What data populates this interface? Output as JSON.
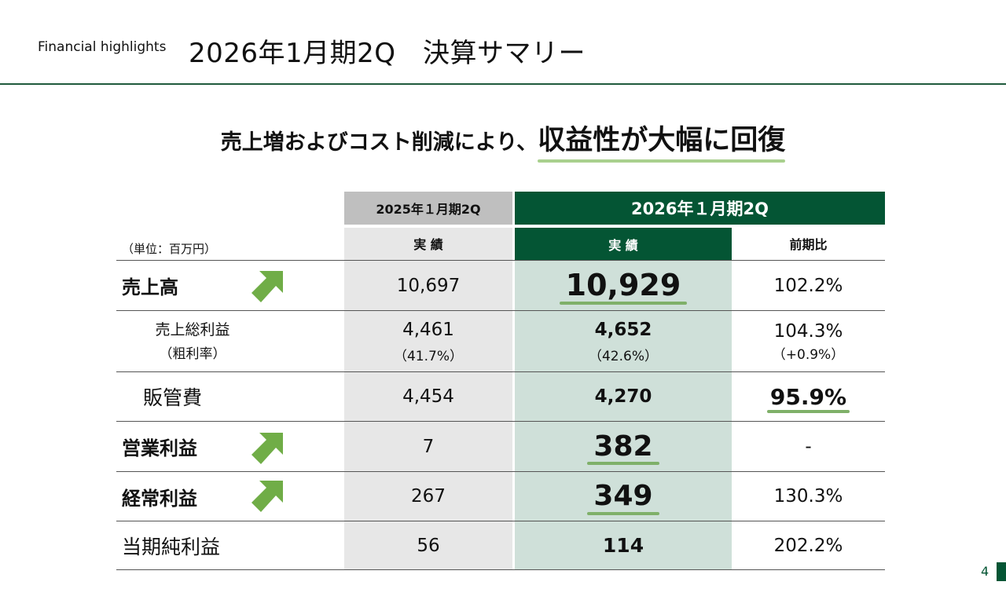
{
  "header": {
    "subtitle": "Financial highlights",
    "title": "2026年1月期2Q　決算サマリー"
  },
  "headline": {
    "plain": "売上増およびコスト削減により、",
    "emphasis": "収益性が大幅に回復"
  },
  "table": {
    "col_prev_period": "2025年１月期2Q",
    "col_cur_period": "2026年１月期2Q",
    "unit": "（単位：百万円）",
    "sub_prev": "実 績",
    "sub_cur": "実 績",
    "sub_yoy": "前期比",
    "rows": [
      {
        "label": "売上高",
        "prev": "10,697",
        "cur": "10,929",
        "yoy": "102.2%"
      },
      {
        "label": "売上総利益",
        "label_sub": "（粗利率）",
        "prev": "4,461",
        "prev_sub": "（41.7%）",
        "cur": "4,652",
        "cur_sub": "（42.6%）",
        "yoy": "104.3%",
        "yoy_sub": "（+0.9%）"
      },
      {
        "label": "販管費",
        "prev": "4,454",
        "cur": "4,270",
        "yoy": "95.9%"
      },
      {
        "label": "営業利益",
        "prev": "7",
        "cur": "382",
        "yoy": "-"
      },
      {
        "label": "経常利益",
        "prev": "267",
        "cur": "349",
        "yoy": "130.3%"
      },
      {
        "label": "当期純利益",
        "prev": "56",
        "cur": "114",
        "yoy": "202.2%"
      }
    ]
  },
  "page_number": "4",
  "colors": {
    "accent_dark_green": "#045534",
    "highlight_green": "#cfe0d9",
    "arrow_green": "#70ad47",
    "underline_green": "#a9d08e"
  }
}
